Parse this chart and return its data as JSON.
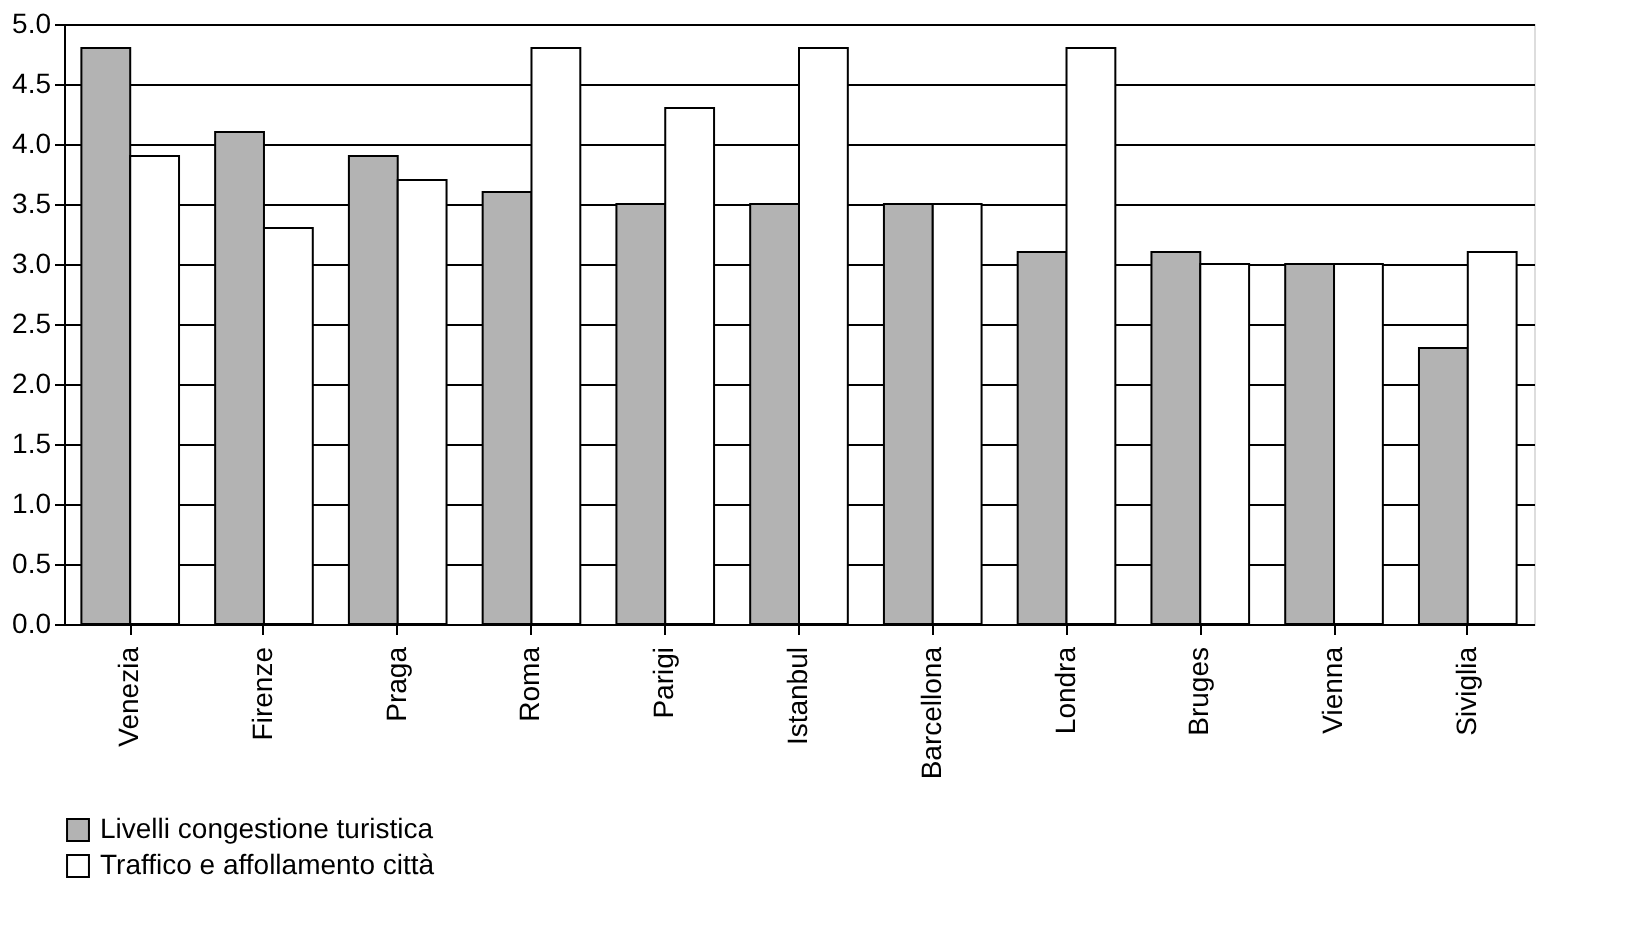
{
  "chart_data": {
    "type": "bar",
    "categories": [
      "Venezia",
      "Firenze",
      "Praga",
      "Roma",
      "Parigi",
      "Istanbul",
      "Barcellona",
      "Londra",
      "Bruges",
      "Vienna",
      "Siviglia"
    ],
    "series": [
      {
        "name": "Livelli  congestione turistica",
        "color": "#b3b3b3",
        "values": [
          4.8,
          4.1,
          3.9,
          3.6,
          3.5,
          3.5,
          3.5,
          3.1,
          3.1,
          3.0,
          2.3
        ]
      },
      {
        "name": "Traffico e affollamento città",
        "color": "#ffffff",
        "values": [
          3.9,
          3.3,
          3.7,
          4.8,
          4.3,
          4.8,
          3.5,
          4.8,
          3.0,
          3.0,
          3.1
        ]
      }
    ],
    "ylim": [
      0,
      5
    ],
    "yticks": [
      {
        "value": 0,
        "label": "0.0"
      },
      {
        "value": 0.5,
        "label": "0.5"
      },
      {
        "value": 1,
        "label": "1.0"
      },
      {
        "value": 1.5,
        "label": "1.5"
      },
      {
        "value": 2,
        "label": "2.0"
      },
      {
        "value": 2.5,
        "label": "2.5"
      },
      {
        "value": 3,
        "label": "3.0"
      },
      {
        "value": 3.5,
        "label": "3.5"
      },
      {
        "value": 4,
        "label": "4.0"
      },
      {
        "value": 4.5,
        "label": "4.5"
      },
      {
        "value": 5,
        "label": "5.0"
      }
    ],
    "grid": "y",
    "legend": "bottom"
  }
}
